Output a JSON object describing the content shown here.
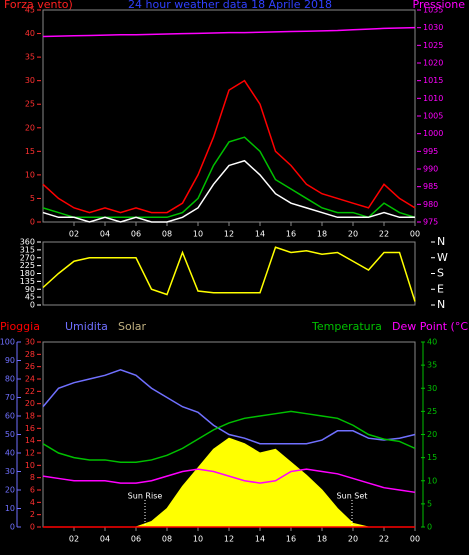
{
  "chart_data": [
    {
      "type": "line",
      "title": "24 hour weather data 18 Aprile 2018",
      "y_label": "Forza vento)",
      "y2_label": "Pressione",
      "x": [
        0,
        1,
        2,
        3,
        4,
        5,
        6,
        7,
        8,
        9,
        10,
        11,
        12,
        13,
        14,
        15,
        16,
        17,
        18,
        19,
        20,
        21,
        22,
        23,
        24
      ],
      "xlim": [
        0,
        24
      ],
      "xticks": [
        {
          "value": 2,
          "label": "02"
        },
        {
          "value": 4,
          "label": "04"
        },
        {
          "value": 6,
          "label": "06"
        },
        {
          "value": 8,
          "label": "08"
        },
        10,
        12,
        14,
        16,
        18,
        20,
        22,
        {
          "value": 24,
          "label": "00"
        }
      ],
      "ylim": [
        0,
        45
      ],
      "yticks": [
        0,
        5,
        10,
        15,
        20,
        25,
        30,
        35,
        40,
        45
      ],
      "y2lim": [
        975,
        1035
      ],
      "y2ticks": [
        975,
        980,
        985,
        990,
        995,
        1000,
        1005,
        1010,
        1015,
        1020,
        1025,
        1030,
        1035
      ],
      "series": [
        {
          "color": "#ff0000",
          "values": [
            8,
            5,
            3,
            2,
            3,
            2,
            3,
            2,
            2,
            4,
            10,
            18,
            28,
            30,
            25,
            15,
            12,
            8,
            6,
            5,
            4,
            3,
            8,
            5,
            3
          ]
        },
        {
          "color": "#00c000",
          "values": [
            3,
            2,
            1,
            1,
            1,
            1,
            1,
            1,
            1,
            2,
            5,
            12,
            17,
            18,
            15,
            9,
            7,
            5,
            3,
            2,
            2,
            1,
            4,
            2,
            1
          ]
        },
        {
          "color": "#ffffff",
          "values": [
            2,
            1,
            1,
            0,
            1,
            0,
            1,
            0,
            0,
            1,
            3,
            8,
            12,
            13,
            10,
            6,
            4,
            3,
            2,
            1,
            1,
            1,
            2,
            1,
            1
          ]
        },
        {
          "color": "#ff00ff",
          "axis": "y2",
          "values": [
            1027.5,
            1027.6,
            1027.7,
            1027.8,
            1027.9,
            1028,
            1028,
            1028.1,
            1028.2,
            1028.3,
            1028.4,
            1028.5,
            1028.6,
            1028.6,
            1028.7,
            1028.8,
            1028.9,
            1029,
            1029.1,
            1029.2,
            1029.4,
            1029.6,
            1029.8,
            1029.9,
            1030
          ]
        }
      ]
    },
    {
      "type": "line",
      "x": [
        0,
        1,
        2,
        3,
        4,
        5,
        6,
        7,
        8,
        9,
        10,
        11,
        12,
        13,
        14,
        15,
        16,
        17,
        18,
        19,
        20,
        21,
        22,
        23,
        24
      ],
      "xlim": [
        0,
        24
      ],
      "ylim": [
        0,
        360
      ],
      "yticks": [
        0,
        45,
        90,
        135,
        180,
        225,
        270,
        315,
        360
      ],
      "y2lim": [
        0,
        360
      ],
      "y2ticks": [
        {
          "value": 360,
          "label": "N"
        },
        {
          "value": 270,
          "label": "W"
        },
        {
          "value": 180,
          "label": "S"
        },
        {
          "value": 90,
          "label": "E"
        },
        {
          "value": 0,
          "label": "N"
        }
      ],
      "series": [
        {
          "color": "#ffff00",
          "values": [
            100,
            180,
            250,
            270,
            270,
            270,
            270,
            90,
            60,
            300,
            80,
            70,
            70,
            70,
            70,
            330,
            300,
            310,
            290,
            300,
            250,
            200,
            300,
            300,
            20
          ]
        }
      ]
    },
    {
      "type": "line",
      "x": [
        0,
        1,
        2,
        3,
        4,
        5,
        6,
        7,
        8,
        9,
        10,
        11,
        12,
        13,
        14,
        15,
        16,
        17,
        18,
        19,
        20,
        21,
        22,
        23,
        24
      ],
      "xlim": [
        0,
        24
      ],
      "xticks": [
        {
          "value": 2,
          "label": "02"
        },
        {
          "value": 4,
          "label": "04"
        },
        {
          "value": 6,
          "label": "06"
        },
        {
          "value": 8,
          "label": "08"
        },
        10,
        12,
        14,
        16,
        18,
        20,
        22,
        {
          "value": 24,
          "label": "00"
        }
      ],
      "ylim": [
        0,
        100
      ],
      "yticks": [
        0,
        10,
        20,
        30,
        40,
        50,
        60,
        70,
        80,
        90,
        100
      ],
      "y3lim": [
        0,
        30
      ],
      "y3ticks": [
        0,
        2,
        4,
        6,
        8,
        10,
        12,
        14,
        16,
        18,
        20,
        22,
        24,
        26,
        28,
        30
      ],
      "y2lim": [
        0,
        40
      ],
      "y2ticks": [
        0,
        5,
        10,
        15,
        20,
        25,
        30,
        35,
        40
      ],
      "annotations": [
        "Sun Rise",
        "Sun Set"
      ],
      "series": [
        {
          "name": "Solar",
          "color": "#ffff00",
          "label_color": "#c0b080",
          "axis": "y",
          "area": true,
          "values": [
            0,
            0,
            0,
            0,
            0,
            0,
            0,
            3,
            10,
            22,
            32,
            42,
            48,
            45,
            40,
            42,
            35,
            28,
            20,
            10,
            2,
            0,
            0,
            0,
            0
          ]
        },
        {
          "name": "Pioggia",
          "color": "#ff0000",
          "axis": "y3",
          "values": [
            0,
            0,
            0,
            0,
            0,
            0,
            0,
            0,
            0,
            0,
            0,
            0,
            0,
            0,
            0,
            0,
            0,
            0,
            0,
            0,
            0,
            0,
            0,
            0,
            0
          ]
        },
        {
          "name": "Umidita",
          "color": "#7070ff",
          "axis": "y",
          "values": [
            65,
            75,
            78,
            80,
            82,
            85,
            82,
            75,
            70,
            65,
            62,
            55,
            50,
            48,
            45,
            45,
            45,
            45,
            47,
            52,
            52,
            48,
            47,
            48,
            50
          ]
        },
        {
          "name": "Temperatura",
          "color": "#00c000",
          "axis": "y2",
          "values": [
            18,
            16,
            15,
            14.5,
            14.5,
            14,
            14,
            14.5,
            15.5,
            17,
            19,
            21,
            22.5,
            23.5,
            24,
            24.5,
            25,
            24.5,
            24,
            23.5,
            22,
            20,
            19,
            18.5,
            17
          ]
        },
        {
          "name": "Dew Point (°C)",
          "color": "#ff00ff",
          "axis": "y2",
          "values": [
            11,
            10.5,
            10,
            10,
            10,
            9.5,
            9.5,
            10,
            11,
            12,
            12.5,
            12,
            11,
            10,
            9.5,
            10,
            12,
            12.5,
            12,
            11.5,
            10.5,
            9.5,
            8.5,
            8,
            7.5
          ]
        }
      ]
    }
  ]
}
